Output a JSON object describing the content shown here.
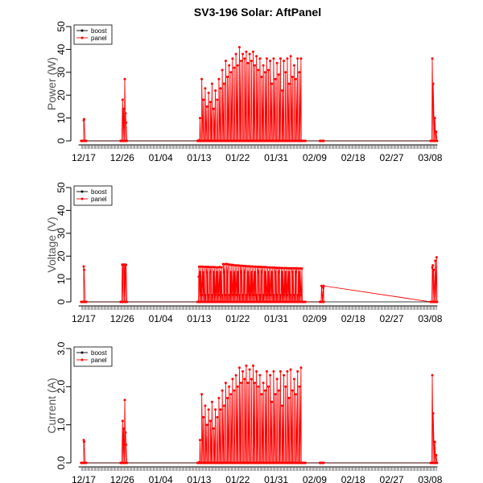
{
  "chart_data": {
    "title": "SV3-196 Solar: AftPanel",
    "x_tick_labels": [
      "12/17",
      "12/26",
      "01/04",
      "01/13",
      "01/22",
      "01/31",
      "02/09",
      "02/18",
      "02/27",
      "03/08"
    ],
    "x_tick_days": [
      0,
      9,
      18,
      27,
      36,
      45,
      54,
      63,
      72,
      81
    ],
    "xlim_days": [
      -1.5,
      83
    ],
    "legend": {
      "position": "top-left",
      "entries": [
        {
          "name": "boost",
          "color": "#000000"
        },
        {
          "name": "panel",
          "color": "#ff0000"
        }
      ]
    },
    "panels": [
      {
        "type": "line",
        "ylabel": "Power (W)",
        "ylim": [
          0,
          50
        ],
        "yticks": [
          0,
          10,
          20,
          30,
          40,
          50
        ],
        "ytick_labels": [
          "0",
          "10",
          "20",
          "30",
          "40",
          "50"
        ],
        "peaks": [
          [
            0.0,
            9
          ],
          [
            0.1,
            9.5
          ],
          [
            9.1,
            18
          ],
          [
            9.3,
            14
          ],
          [
            9.6,
            27
          ],
          [
            9.8,
            12
          ],
          [
            27.6,
            27
          ],
          [
            28.0,
            18
          ],
          [
            28.4,
            23
          ],
          [
            28.8,
            15
          ],
          [
            29.2,
            21
          ],
          [
            29.6,
            17
          ],
          [
            30.0,
            25
          ],
          [
            30.4,
            14
          ],
          [
            30.8,
            22
          ],
          [
            31.2,
            18
          ],
          [
            31.6,
            27
          ],
          [
            32.0,
            23
          ],
          [
            32.4,
            31
          ],
          [
            32.8,
            25
          ],
          [
            33.2,
            35
          ],
          [
            33.6,
            28
          ],
          [
            34.0,
            33
          ],
          [
            34.4,
            30
          ],
          [
            34.8,
            36
          ],
          [
            35.2,
            32
          ],
          [
            35.6,
            38
          ],
          [
            36.0,
            33
          ],
          [
            36.4,
            41
          ],
          [
            36.8,
            35
          ],
          [
            37.2,
            38
          ],
          [
            37.6,
            36
          ],
          [
            38.0,
            39
          ],
          [
            38.4,
            34
          ],
          [
            38.8,
            38
          ],
          [
            39.2,
            35
          ],
          [
            39.6,
            39
          ],
          [
            40.0,
            33
          ],
          [
            40.4,
            37
          ],
          [
            40.8,
            31
          ],
          [
            41.2,
            36
          ],
          [
            41.6,
            28
          ],
          [
            42.0,
            33
          ],
          [
            42.4,
            30
          ],
          [
            42.8,
            36
          ],
          [
            43.2,
            31
          ],
          [
            43.6,
            35
          ],
          [
            44.0,
            25
          ],
          [
            44.4,
            36
          ],
          [
            44.8,
            27
          ],
          [
            45.2,
            34
          ],
          [
            45.6,
            29
          ],
          [
            46.0,
            36
          ],
          [
            46.4,
            22
          ],
          [
            46.8,
            35
          ],
          [
            47.2,
            30
          ],
          [
            47.6,
            36
          ],
          [
            48.0,
            25
          ],
          [
            48.4,
            37
          ],
          [
            48.8,
            28
          ],
          [
            49.2,
            33
          ],
          [
            49.6,
            27
          ],
          [
            50.0,
            36
          ],
          [
            50.4,
            30
          ],
          [
            50.8,
            36
          ],
          [
            81.5,
            36
          ],
          [
            81.7,
            25
          ],
          [
            82.1,
            10
          ],
          [
            82.4,
            4
          ]
        ],
        "segments": [
          [
            9.9,
            8
          ],
          [
            27.0,
            0.3
          ]
        ],
        "daily_minor_peaks": [
          10,
          3
        ]
      },
      {
        "type": "line",
        "ylabel": "Voltage (V)",
        "ylim": [
          0,
          50
        ],
        "yticks": [
          0,
          10,
          20,
          30,
          40,
          50
        ],
        "ytick_labels": [
          "0",
          "10",
          "20",
          "30",
          "40",
          "50"
        ],
        "peaks": [
          [
            0.0,
            15.5
          ],
          [
            0.1,
            14
          ],
          [
            9.0,
            16.3
          ],
          [
            9.2,
            16.3
          ],
          [
            9.4,
            16.3
          ],
          [
            9.6,
            16.3
          ],
          [
            9.8,
            16.3
          ],
          [
            27.0,
            15.4
          ],
          [
            27.4,
            15.4
          ],
          [
            27.8,
            15.4
          ],
          [
            28.2,
            15.3
          ],
          [
            28.6,
            15.3
          ],
          [
            29.0,
            15.3
          ],
          [
            29.4,
            15.2
          ],
          [
            29.8,
            15.2
          ],
          [
            30.2,
            15.2
          ],
          [
            30.6,
            15.2
          ],
          [
            31.0,
            15.1
          ],
          [
            31.4,
            15.1
          ],
          [
            31.8,
            15.2
          ],
          [
            32.2,
            15.1
          ],
          [
            32.6,
            16.5
          ],
          [
            33.0,
            16.5
          ],
          [
            33.4,
            16.6
          ],
          [
            33.8,
            16.4
          ],
          [
            34.2,
            16.3
          ],
          [
            34.6,
            16.2
          ],
          [
            35.0,
            16.1
          ],
          [
            35.4,
            16.0
          ],
          [
            35.8,
            15.9
          ],
          [
            36.2,
            15.9
          ],
          [
            36.6,
            15.8
          ],
          [
            37.0,
            15.8
          ],
          [
            37.4,
            15.7
          ],
          [
            37.8,
            15.7
          ],
          [
            38.2,
            15.6
          ],
          [
            38.6,
            15.6
          ],
          [
            39.0,
            15.5
          ],
          [
            39.4,
            15.5
          ],
          [
            39.8,
            15.4
          ],
          [
            40.2,
            15.4
          ],
          [
            40.6,
            15.3
          ],
          [
            41.0,
            15.3
          ],
          [
            41.4,
            15.3
          ],
          [
            41.8,
            15.2
          ],
          [
            42.2,
            15.2
          ],
          [
            42.6,
            15.2
          ],
          [
            43.0,
            15.1
          ],
          [
            43.4,
            15.1
          ],
          [
            43.8,
            15.0
          ],
          [
            44.2,
            15.0
          ],
          [
            44.6,
            15.0
          ],
          [
            45.0,
            14.9
          ],
          [
            45.4,
            14.9
          ],
          [
            45.8,
            14.9
          ],
          [
            46.2,
            14.8
          ],
          [
            46.6,
            14.8
          ],
          [
            47.0,
            14.8
          ],
          [
            47.4,
            14.8
          ],
          [
            47.8,
            14.7
          ],
          [
            48.2,
            14.7
          ],
          [
            48.6,
            14.7
          ],
          [
            49.0,
            14.7
          ],
          [
            49.4,
            14.7
          ],
          [
            49.8,
            14.7
          ],
          [
            50.2,
            14.6
          ],
          [
            50.6,
            14.6
          ],
          [
            51.0,
            14.6
          ],
          [
            55.6,
            7
          ],
          [
            56.0,
            6.2
          ],
          [
            81.6,
            16
          ],
          [
            81.8,
            14
          ],
          [
            82.2,
            18
          ],
          [
            82.5,
            19.5
          ]
        ],
        "segments": [
          [
            9.9,
            16.2
          ],
          [
            26.9,
            11
          ],
          [
            56.1,
            7
          ],
          [
            81.5,
            15
          ]
        ],
        "daily_minor_peaks": [
          13,
          3
        ]
      },
      {
        "type": "line",
        "ylabel": "Current (A)",
        "ylim": [
          0,
          3
        ],
        "yticks": [
          0,
          1,
          2,
          3
        ],
        "ytick_labels": [
          "0.0",
          "1.0",
          "2.0",
          "3.0"
        ],
        "peaks": [
          [
            0.0,
            0.6
          ],
          [
            0.1,
            0.55
          ],
          [
            9.1,
            1.1
          ],
          [
            9.3,
            0.9
          ],
          [
            9.6,
            1.65
          ],
          [
            9.8,
            0.8
          ],
          [
            27.6,
            1.8
          ],
          [
            28.0,
            1.2
          ],
          [
            28.4,
            1.5
          ],
          [
            28.8,
            1.0
          ],
          [
            29.2,
            1.4
          ],
          [
            29.6,
            1.1
          ],
          [
            30.0,
            1.6
          ],
          [
            30.4,
            0.9
          ],
          [
            30.8,
            1.4
          ],
          [
            31.2,
            1.2
          ],
          [
            31.6,
            1.7
          ],
          [
            32.0,
            1.4
          ],
          [
            32.4,
            1.9
          ],
          [
            32.8,
            1.5
          ],
          [
            33.2,
            2.1
          ],
          [
            33.6,
            1.7
          ],
          [
            34.0,
            2.0
          ],
          [
            34.4,
            1.8
          ],
          [
            34.8,
            2.2
          ],
          [
            35.2,
            1.9
          ],
          [
            35.6,
            2.3
          ],
          [
            36.0,
            2.0
          ],
          [
            36.4,
            2.5
          ],
          [
            36.8,
            2.1
          ],
          [
            37.2,
            2.4
          ],
          [
            37.6,
            2.2
          ],
          [
            38.0,
            2.55
          ],
          [
            38.4,
            2.1
          ],
          [
            38.8,
            2.45
          ],
          [
            39.2,
            2.2
          ],
          [
            39.6,
            2.55
          ],
          [
            40.0,
            2.1
          ],
          [
            40.4,
            2.4
          ],
          [
            40.8,
            2.0
          ],
          [
            41.2,
            2.3
          ],
          [
            41.6,
            1.8
          ],
          [
            42.0,
            2.1
          ],
          [
            42.4,
            1.9
          ],
          [
            42.8,
            2.4
          ],
          [
            43.2,
            2.0
          ],
          [
            43.6,
            2.3
          ],
          [
            44.0,
            1.6
          ],
          [
            44.4,
            2.4
          ],
          [
            44.8,
            1.8
          ],
          [
            45.2,
            2.2
          ],
          [
            45.6,
            1.9
          ],
          [
            46.0,
            2.4
          ],
          [
            46.4,
            1.5
          ],
          [
            46.8,
            2.3
          ],
          [
            47.2,
            2.0
          ],
          [
            47.6,
            2.4
          ],
          [
            48.0,
            1.7
          ],
          [
            48.4,
            2.45
          ],
          [
            48.8,
            1.9
          ],
          [
            49.2,
            2.2
          ],
          [
            49.6,
            1.8
          ],
          [
            50.0,
            2.4
          ],
          [
            50.4,
            2.0
          ],
          [
            50.8,
            2.5
          ],
          [
            81.5,
            2.3
          ],
          [
            81.7,
            1.3
          ],
          [
            82.1,
            0.55
          ],
          [
            82.4,
            0.2
          ]
        ],
        "segments": [
          [
            9.9,
            0.48
          ],
          [
            27.0,
            0.02
          ]
        ],
        "daily_minor_peaks": [
          0.6,
          0.2
        ]
      }
    ]
  }
}
